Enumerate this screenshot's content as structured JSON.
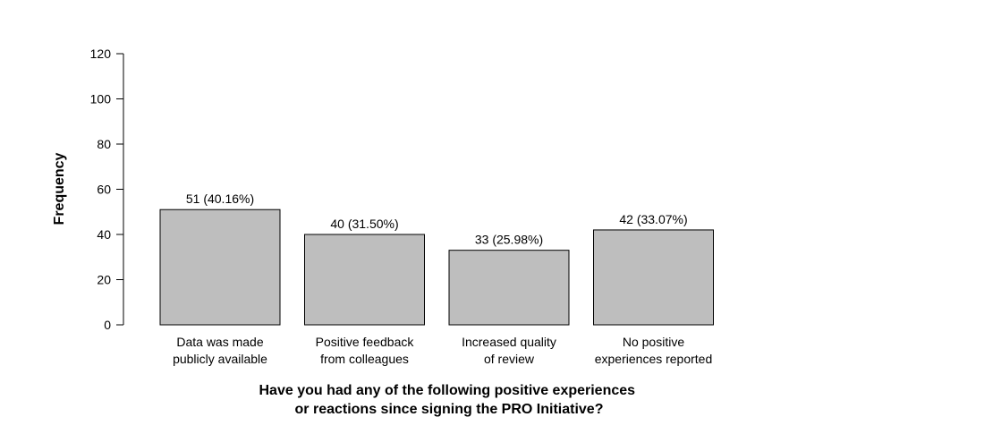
{
  "chart_data": {
    "type": "bar",
    "title": "",
    "xlabel": [
      "Have you had any of the following positive experiences",
      "or reactions since signing the PRO Initiative?"
    ],
    "ylabel": "Frequency",
    "ylim": [
      0,
      120
    ],
    "yticks": [
      0,
      20,
      40,
      60,
      80,
      100,
      120
    ],
    "grid": false,
    "legend": "none",
    "bar_color": "#bebebe",
    "bar_edge_color": "#000000",
    "categories": [
      [
        "Data was made",
        "publicly available"
      ],
      [
        "Positive feedback",
        "from colleagues"
      ],
      [
        "Increased quality",
        "of review"
      ],
      [
        "No positive",
        "experiences reported"
      ]
    ],
    "values": [
      51,
      40,
      33,
      42
    ],
    "data_labels": [
      "51 (40.16%)",
      "40 (31.50%)",
      "33 (25.98%)",
      "42 (33.07%)"
    ]
  }
}
